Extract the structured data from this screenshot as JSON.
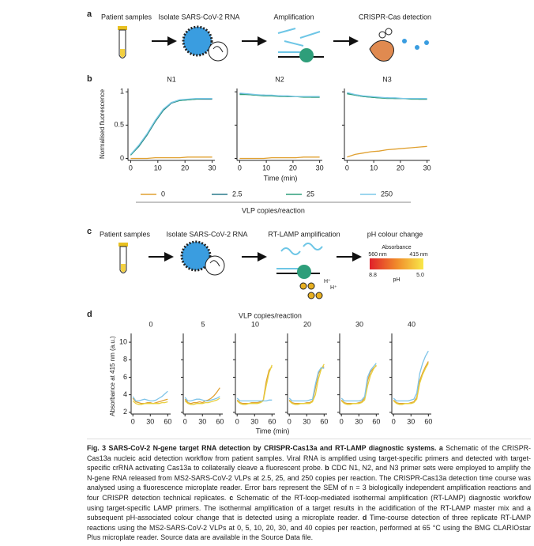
{
  "panel_a": {
    "label": "a",
    "steps": [
      "Patient samples",
      "Isolate SARS-CoV-2 RNA",
      "Amplification",
      "CRISPR-Cas detection"
    ]
  },
  "panel_b": {
    "label": "b",
    "ylabel": "Normalised fluorescence",
    "xlabel": "Time (min)",
    "legend_title": "VLP copies/reaction"
  },
  "panel_c": {
    "label": "c",
    "steps": [
      "Patient samples",
      "Isolate SARS-CoV-2 RNA",
      "RT-LAMP amplification",
      "pH colour change"
    ],
    "absorbance": "Absorbance",
    "wl_left": "560 nm",
    "wl_right": "415 nm",
    "ph_left": "8.8",
    "ph_label": "pH",
    "ph_right": "5.0",
    "ions": [
      "H⁺",
      "H⁺"
    ]
  },
  "panel_d": {
    "label": "d",
    "header": "VLP copies/reaction",
    "ylabel": "Absorbance at 415 nm (a.u.)",
    "xlabel": "Time (min)"
  },
  "chart_data": [
    {
      "type": "line",
      "title": "N1",
      "x": [
        0,
        3,
        6,
        9,
        12,
        15,
        18,
        21,
        24,
        27,
        30
      ],
      "xlim": [
        -1,
        31
      ],
      "xticks": [
        0,
        10,
        20,
        30
      ],
      "ylim": [
        -0.03,
        1.05
      ],
      "yticks": [
        0,
        0.5,
        1
      ],
      "series": [
        {
          "name": "0",
          "color": "#e0a030",
          "values": [
            0,
            0,
            0,
            0.01,
            0.01,
            0.01,
            0.01,
            0.02,
            0.02,
            0.02,
            0.02
          ]
        },
        {
          "name": "2.5",
          "color": "#2a7a8c",
          "values": [
            0.05,
            0.18,
            0.35,
            0.55,
            0.72,
            0.83,
            0.87,
            0.88,
            0.89,
            0.89,
            0.89
          ]
        },
        {
          "name": "25",
          "color": "#2e9e7a",
          "values": [
            0.05,
            0.19,
            0.36,
            0.56,
            0.73,
            0.84,
            0.87,
            0.88,
            0.89,
            0.9,
            0.9
          ]
        },
        {
          "name": "250",
          "color": "#7cc8e8",
          "values": [
            0.06,
            0.2,
            0.37,
            0.57,
            0.74,
            0.84,
            0.88,
            0.89,
            0.9,
            0.9,
            0.9
          ]
        }
      ]
    },
    {
      "type": "line",
      "title": "N2",
      "x": [
        0,
        3,
        6,
        9,
        12,
        15,
        18,
        21,
        24,
        27,
        30
      ],
      "xlim": [
        -1,
        31
      ],
      "xticks": [
        0,
        10,
        20,
        30
      ],
      "ylim": [
        -0.03,
        1.05
      ],
      "yticks": [
        0,
        0.5,
        1
      ],
      "series": [
        {
          "color": "#e0a030",
          "values": [
            0,
            0,
            0,
            0,
            0.01,
            0.01,
            0.01,
            0.01,
            0.02,
            0.02,
            0.02
          ]
        },
        {
          "color": "#2a7a8c",
          "values": [
            0.97,
            0.96,
            0.95,
            0.95,
            0.94,
            0.94,
            0.93,
            0.93,
            0.93,
            0.92,
            0.92
          ]
        },
        {
          "color": "#2e9e7a",
          "values": [
            0.96,
            0.96,
            0.95,
            0.94,
            0.94,
            0.93,
            0.93,
            0.93,
            0.92,
            0.92,
            0.92
          ]
        },
        {
          "color": "#7cc8e8",
          "values": [
            0.98,
            0.97,
            0.96,
            0.95,
            0.95,
            0.94,
            0.94,
            0.93,
            0.93,
            0.93,
            0.93
          ]
        }
      ]
    },
    {
      "type": "line",
      "title": "N3",
      "x": [
        0,
        3,
        6,
        9,
        12,
        15,
        18,
        21,
        24,
        27,
        30
      ],
      "xlim": [
        -1,
        31
      ],
      "xticks": [
        0,
        10,
        20,
        30
      ],
      "ylim": [
        -0.03,
        1.05
      ],
      "yticks": [
        0,
        0.5,
        1
      ],
      "series": [
        {
          "color": "#e0a030",
          "values": [
            0.02,
            0.06,
            0.08,
            0.1,
            0.11,
            0.13,
            0.14,
            0.15,
            0.16,
            0.17,
            0.18
          ]
        },
        {
          "color": "#2a7a8c",
          "values": [
            0.98,
            0.95,
            0.93,
            0.92,
            0.91,
            0.91,
            0.9,
            0.9,
            0.9,
            0.89,
            0.89
          ]
        },
        {
          "color": "#2e9e7a",
          "values": [
            0.97,
            0.95,
            0.93,
            0.92,
            0.91,
            0.9,
            0.9,
            0.9,
            0.89,
            0.89,
            0.89
          ]
        },
        {
          "color": "#7cc8e8",
          "values": [
            0.99,
            0.96,
            0.94,
            0.93,
            0.92,
            0.91,
            0.91,
            0.9,
            0.9,
            0.9,
            0.9
          ]
        }
      ]
    },
    {
      "type": "line",
      "title": "0",
      "x": [
        0,
        5,
        10,
        15,
        20,
        25,
        30,
        35,
        40,
        45,
        50,
        55,
        60
      ],
      "xlim": [
        -3,
        65
      ],
      "xticks": [
        0,
        30,
        60
      ],
      "ylim": [
        1.8,
        11
      ],
      "yticks": [
        2,
        4,
        6,
        8,
        10
      ],
      "series": [
        {
          "color": "#e0a030",
          "values": [
            3.6,
            3.2,
            3.1,
            3.0,
            3.0,
            3.1,
            3.1,
            3.0,
            3.1,
            3.2,
            3.3,
            3.4,
            3.5
          ]
        },
        {
          "color": "#e8d040",
          "values": [
            3.3,
            3.0,
            2.9,
            2.9,
            3.0,
            3.0,
            3.0,
            3.0,
            3.0,
            3.0,
            3.1,
            3.1,
            3.2
          ]
        },
        {
          "color": "#7fc4e8",
          "values": [
            3.8,
            3.3,
            3.3,
            3.4,
            3.5,
            3.4,
            3.3,
            3.3,
            3.4,
            3.6,
            3.8,
            4.1,
            4.4
          ]
        }
      ]
    },
    {
      "type": "line",
      "title": "5",
      "x": [
        0,
        5,
        10,
        15,
        20,
        25,
        30,
        35,
        40,
        45,
        50,
        55,
        60
      ],
      "xlim": [
        -3,
        65
      ],
      "xticks": [
        0,
        30,
        60
      ],
      "ylim": [
        1.8,
        11
      ],
      "yticks": [
        2,
        4,
        6,
        8,
        10
      ],
      "series": [
        {
          "color": "#e0a030",
          "values": [
            3.5,
            3.1,
            3.0,
            3.1,
            3.1,
            3.2,
            3.1,
            3.3,
            3.4,
            3.6,
            3.9,
            4.3,
            4.8
          ]
        },
        {
          "color": "#e8d040",
          "values": [
            3.3,
            3.0,
            2.9,
            2.9,
            3.0,
            3.0,
            3.0,
            3.1,
            3.1,
            3.2,
            3.3,
            3.4,
            3.6
          ]
        },
        {
          "color": "#7fc4e8",
          "values": [
            3.7,
            3.3,
            3.3,
            3.4,
            3.5,
            3.5,
            3.4,
            3.3,
            3.3,
            3.4,
            3.5,
            3.6,
            3.8
          ]
        }
      ]
    },
    {
      "type": "line",
      "title": "10",
      "x": [
        0,
        5,
        10,
        15,
        20,
        25,
        30,
        35,
        40,
        45,
        50,
        55,
        60
      ],
      "xlim": [
        -3,
        65
      ],
      "xticks": [
        0,
        30,
        60
      ],
      "ylim": [
        1.8,
        11
      ],
      "yticks": [
        2,
        4,
        6,
        8,
        10
      ],
      "series": [
        {
          "color": "#e0a030",
          "values": [
            3.4,
            3.1,
            3.0,
            3.0,
            3.0,
            3.1,
            3.1,
            3.1,
            3.2,
            3.4,
            5.5,
            6.8,
            7.2
          ]
        },
        {
          "color": "#e8d040",
          "values": [
            3.3,
            3.0,
            2.9,
            2.9,
            3.0,
            3.0,
            3.0,
            3.0,
            3.1,
            3.3,
            5.0,
            6.5,
            7.4
          ]
        },
        {
          "color": "#7fc4e8",
          "values": [
            3.6,
            3.3,
            3.3,
            3.3,
            3.3,
            3.3,
            3.3,
            3.3,
            3.3,
            3.3,
            3.3,
            3.4,
            3.4
          ]
        }
      ]
    },
    {
      "type": "line",
      "title": "20",
      "x": [
        0,
        5,
        10,
        15,
        20,
        25,
        30,
        35,
        40,
        45,
        50,
        55,
        60
      ],
      "xlim": [
        -3,
        65
      ],
      "xticks": [
        0,
        30,
        60
      ],
      "ylim": [
        1.8,
        11
      ],
      "yticks": [
        2,
        4,
        6,
        8,
        10
      ],
      "series": [
        {
          "color": "#e0a030",
          "values": [
            3.4,
            3.1,
            3.0,
            3.0,
            3.0,
            3.0,
            3.1,
            3.1,
            3.3,
            4.8,
            6.4,
            7.0,
            7.2
          ]
        },
        {
          "color": "#e8d040",
          "values": [
            3.3,
            3.0,
            2.9,
            2.9,
            3.0,
            3.0,
            3.0,
            3.0,
            3.2,
            4.0,
            5.8,
            6.9,
            7.5
          ]
        },
        {
          "color": "#7fc4e8",
          "values": [
            3.6,
            3.3,
            3.3,
            3.3,
            3.3,
            3.3,
            3.3,
            3.4,
            3.5,
            5.2,
            6.6,
            7.1,
            7.0
          ]
        }
      ]
    },
    {
      "type": "line",
      "title": "30",
      "x": [
        0,
        5,
        10,
        15,
        20,
        25,
        30,
        35,
        40,
        45,
        50,
        55,
        60
      ],
      "xlim": [
        -3,
        65
      ],
      "xticks": [
        0,
        30,
        60
      ],
      "ylim": [
        1.8,
        11
      ],
      "yticks": [
        2,
        4,
        6,
        8,
        10
      ],
      "series": [
        {
          "color": "#e0a030",
          "values": [
            3.4,
            3.1,
            3.0,
            3.0,
            3.0,
            3.0,
            3.1,
            3.2,
            3.6,
            5.6,
            6.6,
            7.0,
            7.3
          ]
        },
        {
          "color": "#e8d040",
          "values": [
            3.3,
            3.0,
            2.9,
            2.9,
            3.0,
            3.0,
            3.0,
            3.1,
            3.4,
            5.0,
            6.2,
            6.9,
            7.4
          ]
        },
        {
          "color": "#7fc4e8",
          "values": [
            3.6,
            3.3,
            3.3,
            3.3,
            3.3,
            3.3,
            3.3,
            3.4,
            3.8,
            6.0,
            6.8,
            7.2,
            7.6
          ]
        }
      ]
    },
    {
      "type": "line",
      "title": "40",
      "x": [
        0,
        5,
        10,
        15,
        20,
        25,
        30,
        35,
        40,
        45,
        50,
        55,
        60
      ],
      "xlim": [
        -3,
        65
      ],
      "xticks": [
        0,
        30,
        60
      ],
      "ylim": [
        1.8,
        11
      ],
      "yticks": [
        2,
        4,
        6,
        8,
        10
      ],
      "series": [
        {
          "color": "#e0a030",
          "values": [
            3.4,
            3.1,
            3.0,
            3.0,
            3.0,
            3.0,
            3.1,
            3.2,
            3.7,
            5.6,
            6.5,
            7.2,
            7.8
          ]
        },
        {
          "color": "#e8d040",
          "values": [
            3.3,
            3.0,
            2.9,
            2.9,
            3.0,
            3.0,
            3.0,
            3.1,
            3.5,
            5.3,
            6.3,
            7.0,
            7.6
          ]
        },
        {
          "color": "#7fc4e8",
          "values": [
            3.6,
            3.3,
            3.3,
            3.3,
            3.3,
            3.3,
            3.4,
            3.5,
            4.2,
            6.4,
            7.6,
            8.4,
            9.0
          ]
        }
      ]
    }
  ],
  "caption": [
    {
      "text": "Fig. 3 SARS-CoV-2 N-gene target RNA detection by CRISPR-Cas13a and RT-LAMP diagnostic systems.",
      "bold": true
    },
    {
      "text": " a",
      "bold": true
    },
    {
      "text": " Schematic of the CRISPR-Cas13a nucleic acid detection workflow from patient samples. Viral RNA is amplified using target-specific primers and detected with target-specific crRNA activating Cas13a to collaterally cleave a fluorescent probe.",
      "bold": false
    },
    {
      "text": " b",
      "bold": true
    },
    {
      "text": " CDC N1, N2, and N3 primer sets were employed to amplify the N-gene RNA released from MS2-SARS-CoV-2 VLPs at 2.5, 25, and 250 copies per reaction. The CRISPR-Cas13a detection time course was analysed using a fluorescence microplate reader. Error bars represent the SEM of n = 3 biologically independent amplification reactions and four CRISPR detection technical replicates.",
      "bold": false
    },
    {
      "text": " c",
      "bold": true
    },
    {
      "text": " Schematic of the RT-loop-mediated isothermal amplification (RT-LAMP) diagnostic workflow using target-specific LAMP primers. The isothermal amplification of a target results in the acidification of the RT-LAMP master mix and a subsequent pH-associated colour change that is detected using a microplate reader.",
      "bold": false
    },
    {
      "text": " d",
      "bold": true
    },
    {
      "text": " Time-course detection of three replicate RT-LAMP reactions using the MS2-SARS-CoV-2 VLPs at 0, 5, 10, 20, 30, and 40 copies per reaction, performed at 65 °C using the BMG CLARIOstar Plus microplate reader. Source data are available in the Source Data file.",
      "bold": false
    }
  ]
}
